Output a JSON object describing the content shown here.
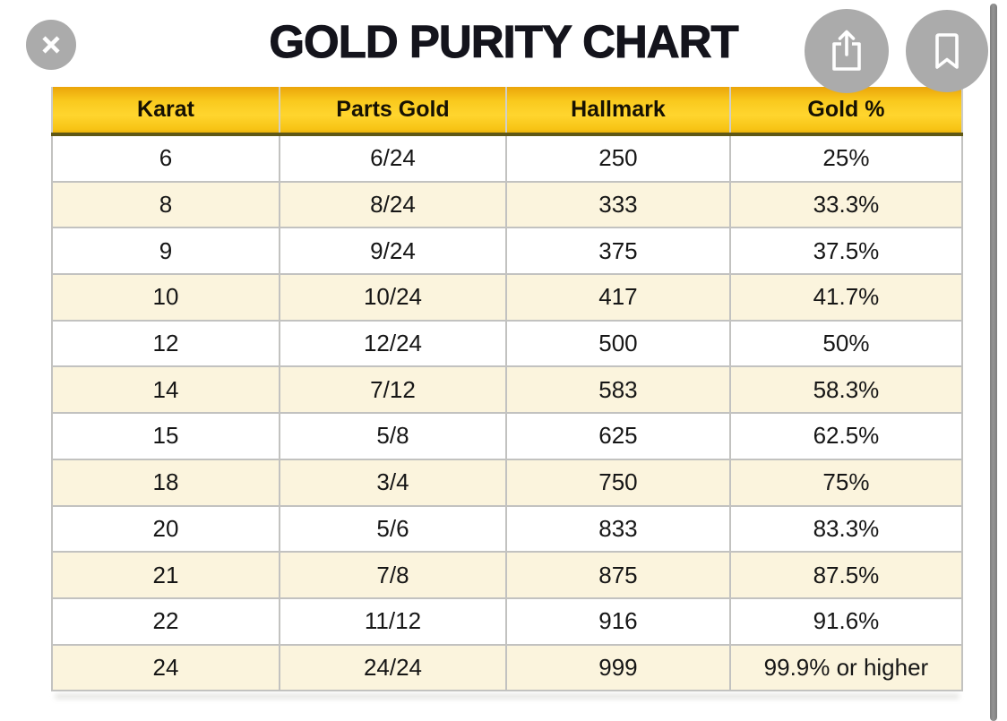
{
  "header": {
    "title": "GOLD PURITY CHART"
  },
  "toolbar": {
    "close_label": "Close",
    "share_label": "Share",
    "bookmark_label": "Bookmark"
  },
  "chart_data": {
    "type": "table",
    "title": "GOLD PURITY CHART",
    "columns": [
      "Karat",
      "Parts Gold",
      "Hallmark",
      "Gold %"
    ],
    "rows": [
      [
        "6",
        "6/24",
        "250",
        "25%"
      ],
      [
        "8",
        "8/24",
        "333",
        "33.3%"
      ],
      [
        "9",
        "9/24",
        "375",
        "37.5%"
      ],
      [
        "10",
        "10/24",
        "417",
        "41.7%"
      ],
      [
        "12",
        "12/24",
        "500",
        "50%"
      ],
      [
        "14",
        "7/12",
        "583",
        "58.3%"
      ],
      [
        "15",
        "5/8",
        "625",
        "62.5%"
      ],
      [
        "18",
        "3/4",
        "750",
        "75%"
      ],
      [
        "20",
        "5/6",
        "833",
        "83.3%"
      ],
      [
        "21",
        "7/8",
        "875",
        "87.5%"
      ],
      [
        "22",
        "11/12",
        "916",
        "91.6%"
      ],
      [
        "24",
        "24/24",
        "999",
        "99.9% or higher"
      ]
    ]
  },
  "colors": {
    "header_gradient_top": "#eba50a",
    "header_gradient_mid": "#ffd52e",
    "header_gradient_bottom": "#edb30b",
    "header_bottom_border": "#5f5715",
    "row_alt_background": "#fbf4dd",
    "row_border": "#c2c2c0",
    "button_circle": "#ababab",
    "title_text": "#14141c",
    "scrollbar": "#8a8a8a"
  }
}
